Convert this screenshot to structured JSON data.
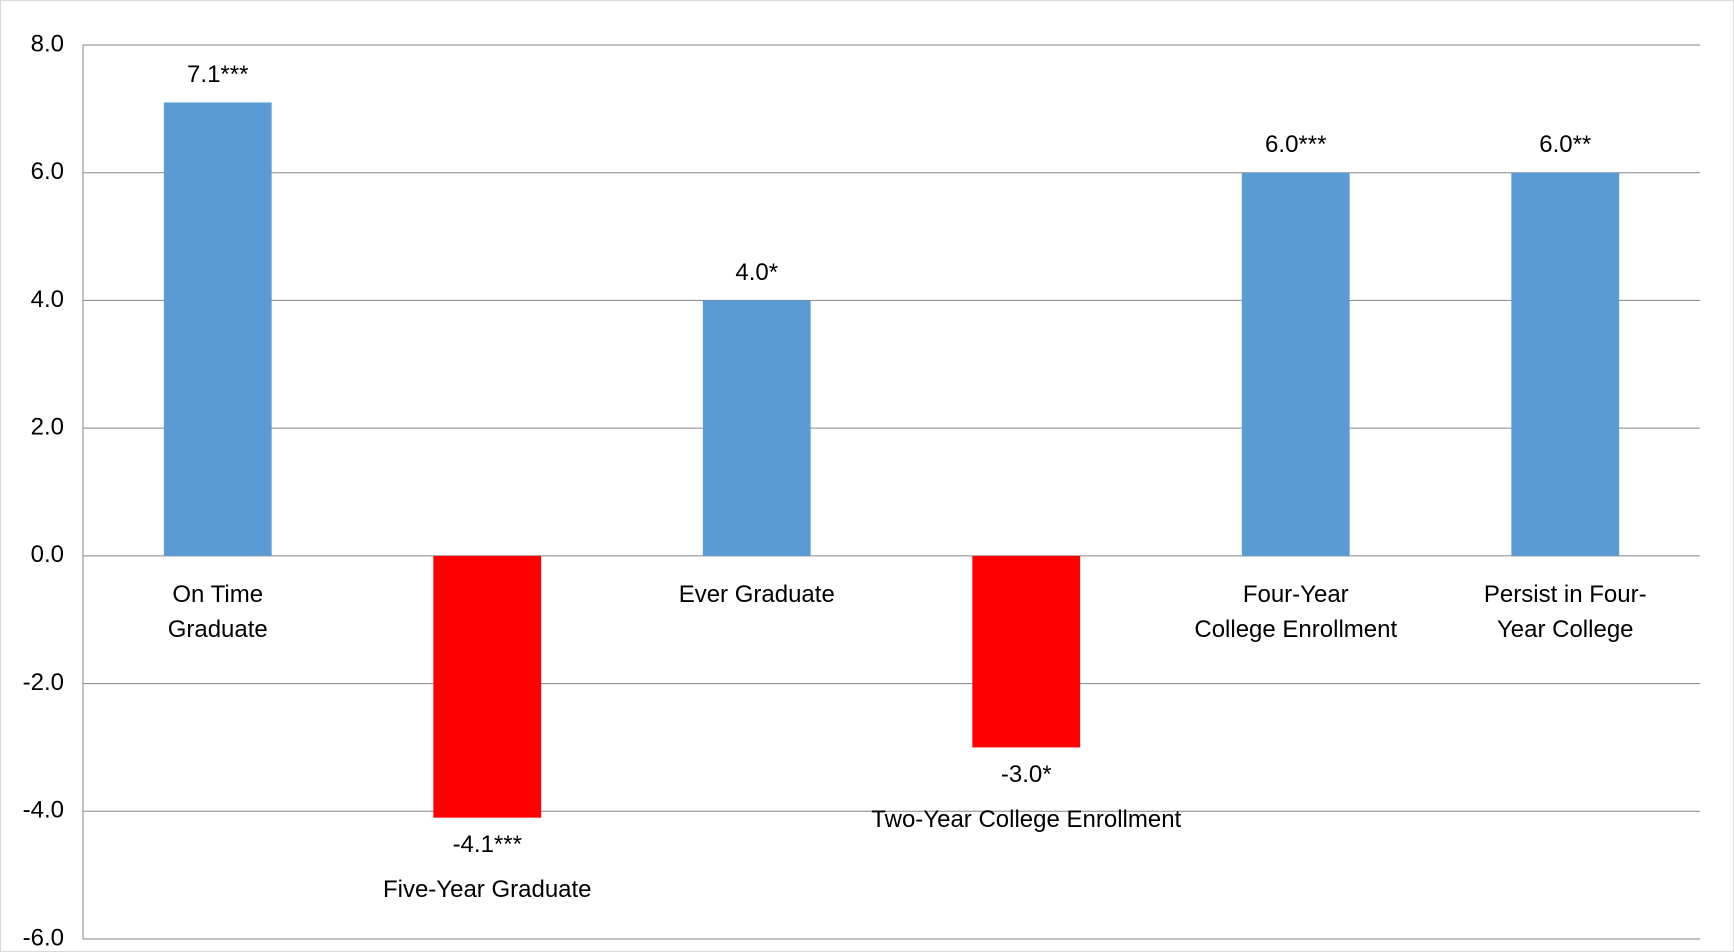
{
  "chart_data": {
    "type": "bar",
    "categories": [
      "On Time\nGraduate",
      "Five-Year Graduate",
      "Ever Graduate",
      "Two-Year College Enrollment",
      "Four-Year\nCollege Enrollment",
      "Persist in Four-\nYear College"
    ],
    "values": [
      7.1,
      -4.1,
      4.0,
      -3.0,
      6.0,
      6.0
    ],
    "value_labels": [
      "7.1***",
      "-4.1***",
      "4.0*",
      "-3.0*",
      "6.0***",
      "6.0**"
    ],
    "colors": [
      "#5b9bd5",
      "#ff0000",
      "#5b9bd5",
      "#ff0000",
      "#5b9bd5",
      "#5b9bd5"
    ],
    "ylim": [
      -6,
      8
    ],
    "yticks": [
      {
        "value": -6,
        "label": "-6.0"
      },
      {
        "value": -4,
        "label": "-4.0"
      },
      {
        "value": -2,
        "label": "-2.0"
      },
      {
        "value": 0,
        "label": "0.0"
      },
      {
        "value": 2,
        "label": "2.0"
      },
      {
        "value": 4,
        "label": "4.0"
      },
      {
        "value": 6,
        "label": "6.0"
      },
      {
        "value": 8,
        "label": "8.0"
      }
    ],
    "grid": true
  }
}
